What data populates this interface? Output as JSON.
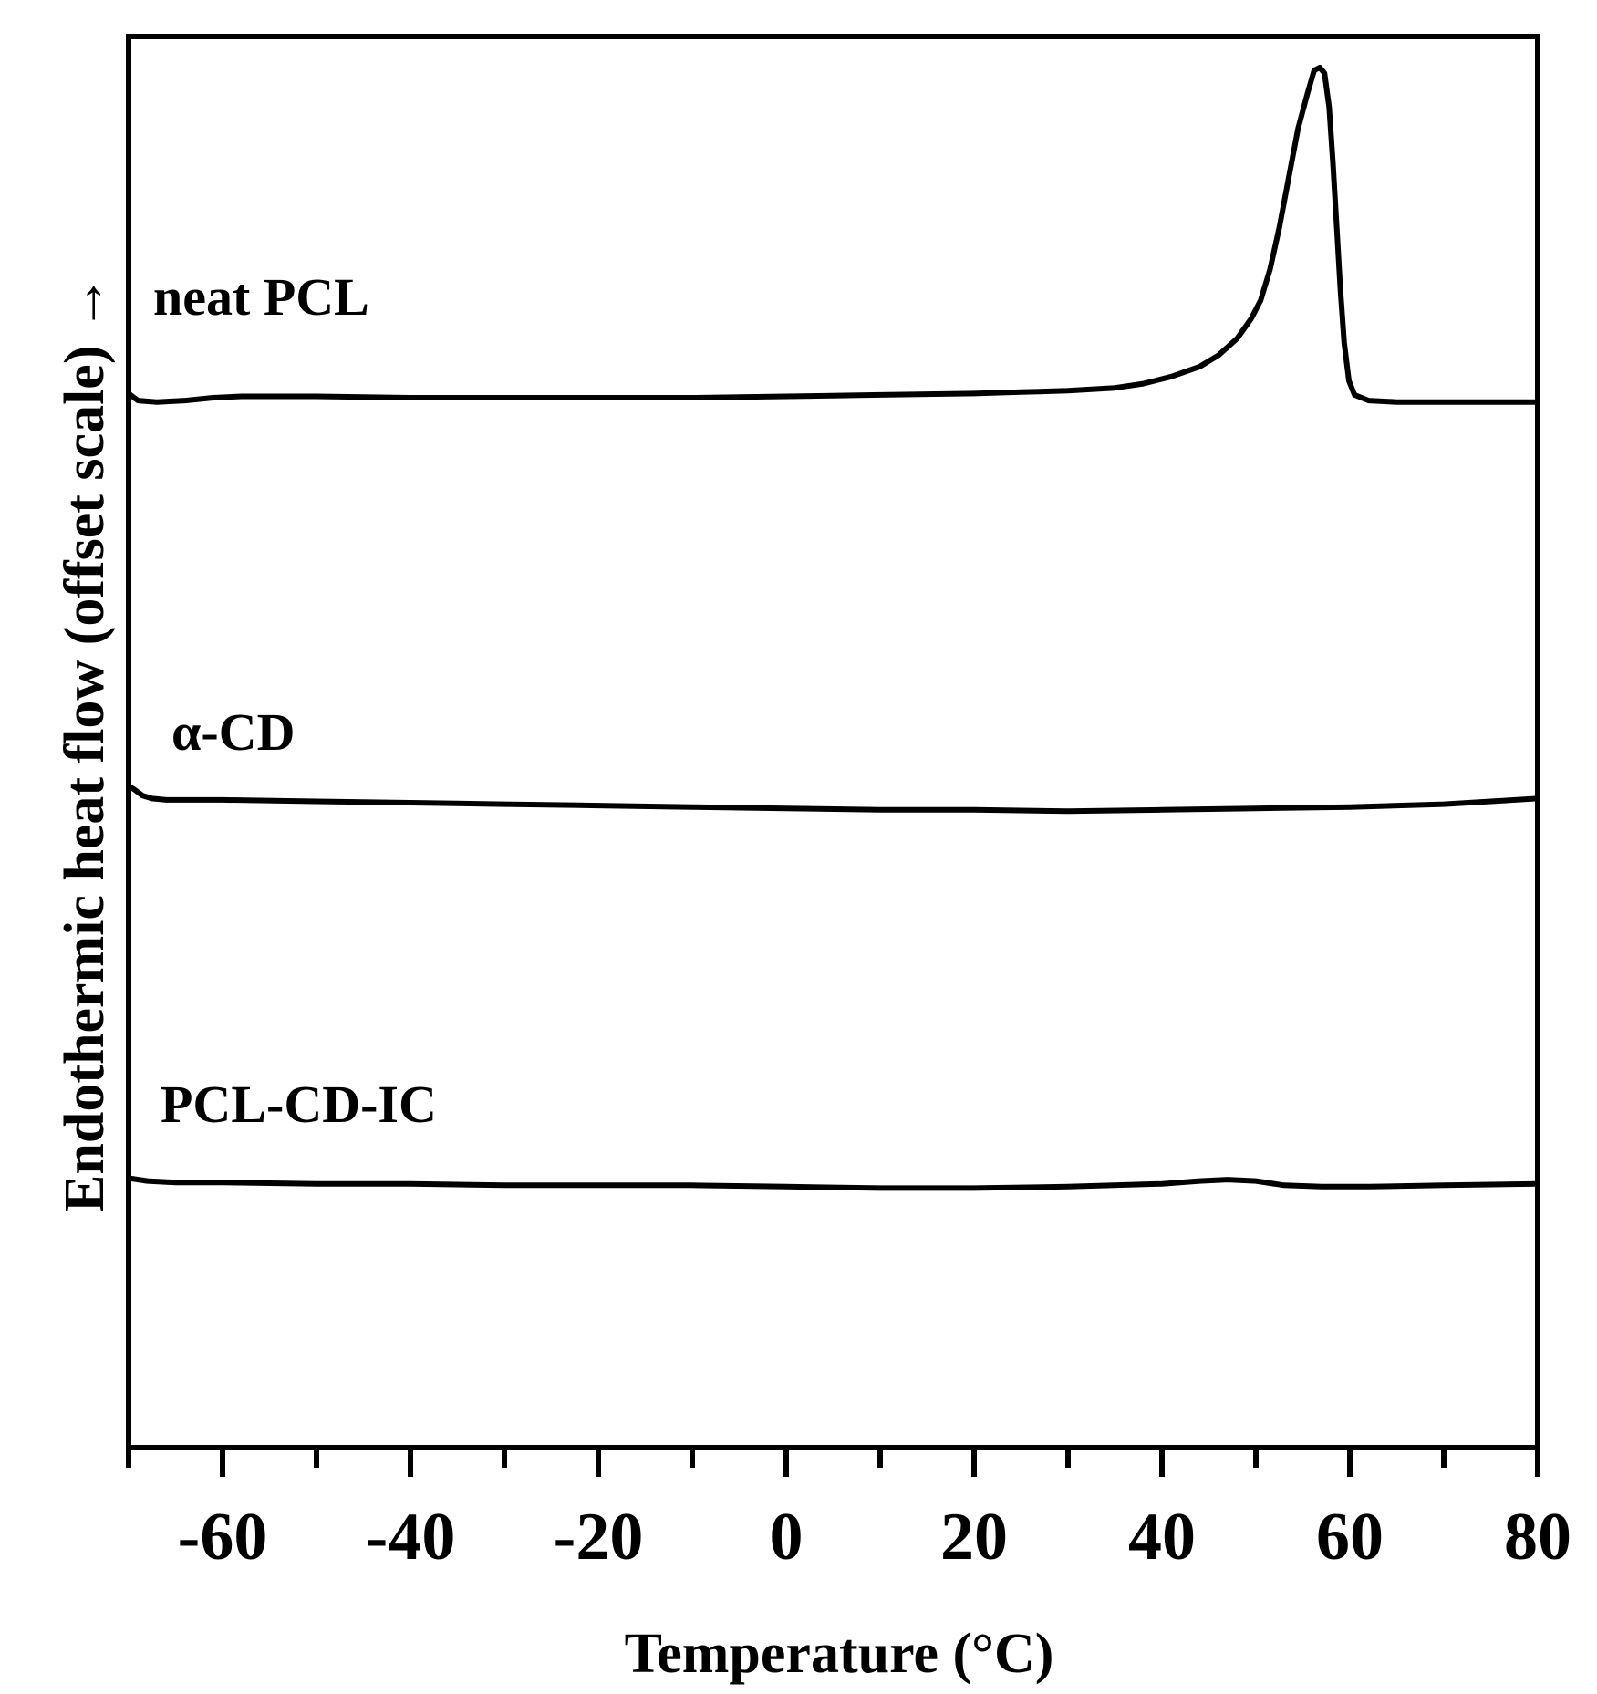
{
  "chart_data": {
    "type": "line",
    "xlabel": "Temperature (°C)",
    "ylabel": "Endothermic heat flow (offset scale) →",
    "xlim": [
      -70,
      80
    ],
    "ylim": [
      0,
      100
    ],
    "x_ticks": [
      -60,
      -40,
      -20,
      0,
      20,
      40,
      60,
      80
    ],
    "x_minor_ticks": [
      -70,
      -50,
      -30,
      -10,
      10,
      30,
      50,
      70
    ],
    "grid": false,
    "series": [
      {
        "name": "neat PCL",
        "color": "#000000",
        "points": [
          [
            -70,
            74.7
          ],
          [
            -69,
            74.2
          ],
          [
            -67,
            74.1
          ],
          [
            -64,
            74.2
          ],
          [
            -61,
            74.4
          ],
          [
            -58,
            74.5
          ],
          [
            -50,
            74.5
          ],
          [
            -40,
            74.4
          ],
          [
            -30,
            74.4
          ],
          [
            -20,
            74.4
          ],
          [
            -10,
            74.4
          ],
          [
            0,
            74.5
          ],
          [
            10,
            74.6
          ],
          [
            20,
            74.7
          ],
          [
            25,
            74.8
          ],
          [
            30,
            74.9
          ],
          [
            35,
            75.1
          ],
          [
            38,
            75.4
          ],
          [
            41,
            75.9
          ],
          [
            44,
            76.6
          ],
          [
            46,
            77.4
          ],
          [
            48,
            78.6
          ],
          [
            49.5,
            80.0
          ],
          [
            50.5,
            81.3
          ],
          [
            51.5,
            83.5
          ],
          [
            52.5,
            86.5
          ],
          [
            53.5,
            90.0
          ],
          [
            54.5,
            93.5
          ],
          [
            55.5,
            96.0
          ],
          [
            56.2,
            97.6
          ],
          [
            56.8,
            97.8
          ],
          [
            57.3,
            97.4
          ],
          [
            57.8,
            95.0
          ],
          [
            58.2,
            91.0
          ],
          [
            58.6,
            86.5
          ],
          [
            59.0,
            82.0
          ],
          [
            59.4,
            78.3
          ],
          [
            59.9,
            75.6
          ],
          [
            60.5,
            74.6
          ],
          [
            62,
            74.2
          ],
          [
            65,
            74.1
          ],
          [
            70,
            74.1
          ],
          [
            75,
            74.1
          ],
          [
            80,
            74.1
          ]
        ]
      },
      {
        "name": "α-CD",
        "color": "#000000",
        "points": [
          [
            -70,
            46.9
          ],
          [
            -69.3,
            46.6
          ],
          [
            -68.5,
            46.2
          ],
          [
            -67.5,
            46.0
          ],
          [
            -66,
            45.9
          ],
          [
            -60,
            45.9
          ],
          [
            -50,
            45.8
          ],
          [
            -40,
            45.7
          ],
          [
            -30,
            45.6
          ],
          [
            -20,
            45.5
          ],
          [
            -10,
            45.4
          ],
          [
            0,
            45.3
          ],
          [
            10,
            45.2
          ],
          [
            20,
            45.2
          ],
          [
            30,
            45.1
          ],
          [
            40,
            45.2
          ],
          [
            50,
            45.3
          ],
          [
            60,
            45.4
          ],
          [
            70,
            45.6
          ],
          [
            75,
            45.8
          ],
          [
            80,
            46.0
          ]
        ]
      },
      {
        "name": "PCL-CD-IC",
        "color": "#000000",
        "points": [
          [
            -70,
            19.1
          ],
          [
            -68,
            18.9
          ],
          [
            -65,
            18.8
          ],
          [
            -60,
            18.8
          ],
          [
            -50,
            18.7
          ],
          [
            -40,
            18.7
          ],
          [
            -30,
            18.6
          ],
          [
            -20,
            18.6
          ],
          [
            -10,
            18.6
          ],
          [
            0,
            18.5
          ],
          [
            10,
            18.4
          ],
          [
            20,
            18.4
          ],
          [
            30,
            18.5
          ],
          [
            40,
            18.7
          ],
          [
            44,
            18.9
          ],
          [
            47,
            19.0
          ],
          [
            50,
            18.9
          ],
          [
            53,
            18.6
          ],
          [
            57,
            18.5
          ],
          [
            62,
            18.5
          ],
          [
            70,
            18.6
          ],
          [
            80,
            18.7
          ]
        ]
      }
    ]
  }
}
